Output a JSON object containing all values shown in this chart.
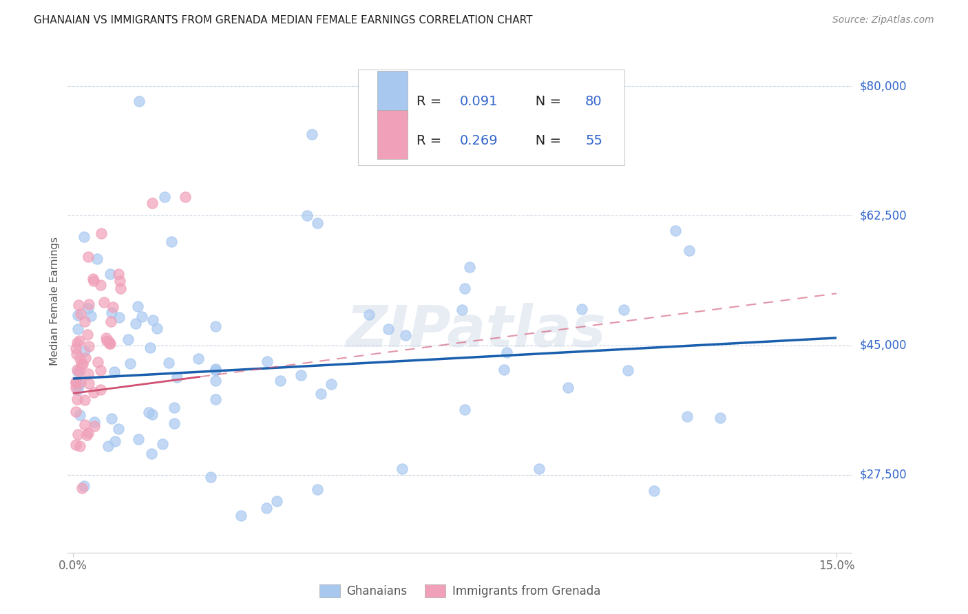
{
  "title": "GHANAIAN VS IMMIGRANTS FROM GRENADA MEDIAN FEMALE EARNINGS CORRELATION CHART",
  "source": "Source: ZipAtlas.com",
  "ylabel": "Median Female Earnings",
  "ytick_labels": [
    "$27,500",
    "$45,000",
    "$62,500",
    "$80,000"
  ],
  "ytick_values": [
    27500,
    45000,
    62500,
    80000
  ],
  "ylim": [
    17000,
    85000
  ],
  "xlim": [
    -0.001,
    0.153
  ],
  "watermark": "ZIPatlas",
  "ghanaian_color": "#a8c8f0",
  "grenada_color": "#f0a0b8",
  "trend_blue": "#1a5fad",
  "trend_pink": "#d05070",
  "label_color": "#3366cc",
  "title_color": "#222222",
  "source_color": "#888888",
  "grid_color": "#c8d4e0",
  "scatter_size": 120,
  "scatter_alpha": 0.7,
  "trend_blue_y0": 40500,
  "trend_blue_y1": 46000,
  "trend_pink_y0": 38500,
  "trend_pink_y1": 52000,
  "trend_pink_solid_x_end": 0.025
}
